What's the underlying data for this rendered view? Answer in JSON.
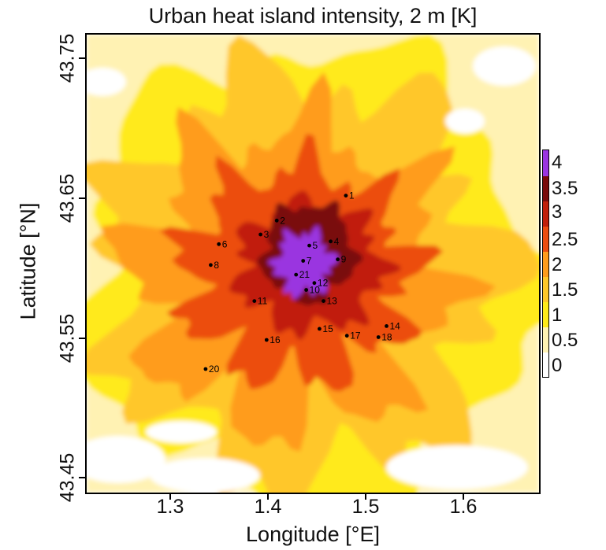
{
  "title": "Urban heat island intensity, 2 m [K]",
  "x_axis": {
    "label": "Longitude [°E]",
    "ticks": [
      "1.3",
      "1.4",
      "1.5",
      "1.6"
    ],
    "range": [
      1.225,
      1.67
    ]
  },
  "y_axis": {
    "label": "Latitude [°N]",
    "ticks": [
      "43.45",
      "43.55",
      "43.65",
      "43.75"
    ],
    "range": [
      43.44,
      43.77
    ]
  },
  "colorbar": {
    "ticks": [
      "0",
      "0.5",
      "1",
      "1.5",
      "2",
      "2.5",
      "3",
      "3.5",
      "4"
    ],
    "range": [
      -0.25,
      4.25
    ],
    "bins": [
      {
        "from": -0.25,
        "to": 0.25,
        "color": "#ffffff"
      },
      {
        "from": 0.25,
        "to": 0.75,
        "color": "#fff2b3"
      },
      {
        "from": 0.75,
        "to": 1.25,
        "color": "#ffea1a"
      },
      {
        "from": 1.25,
        "to": 1.75,
        "color": "#ffc72a"
      },
      {
        "from": 1.75,
        "to": 2.25,
        "color": "#ff9c1c"
      },
      {
        "from": 2.25,
        "to": 2.75,
        "color": "#ec4d10"
      },
      {
        "from": 2.75,
        "to": 3.25,
        "color": "#c11f0a"
      },
      {
        "from": 3.25,
        "to": 3.75,
        "color": "#7a0a0a"
      },
      {
        "from": 3.75,
        "to": 4.25,
        "color": "#9a35e0"
      }
    ]
  },
  "stations": [
    {
      "id": "1",
      "lon": 1.48,
      "lat": 43.654
    },
    {
      "id": "2",
      "lon": 1.412,
      "lat": 43.636
    },
    {
      "id": "3",
      "lon": 1.396,
      "lat": 43.626
    },
    {
      "id": "4",
      "lon": 1.465,
      "lat": 43.621
    },
    {
      "id": "5",
      "lon": 1.444,
      "lat": 43.618
    },
    {
      "id": "6",
      "lon": 1.355,
      "lat": 43.619
    },
    {
      "id": "7",
      "lon": 1.438,
      "lat": 43.607
    },
    {
      "id": "8",
      "lon": 1.347,
      "lat": 43.604
    },
    {
      "id": "9",
      "lon": 1.472,
      "lat": 43.608
    },
    {
      "id": "10",
      "lon": 1.441,
      "lat": 43.586
    },
    {
      "id": "11",
      "lon": 1.39,
      "lat": 43.578
    },
    {
      "id": "12",
      "lon": 1.449,
      "lat": 43.591
    },
    {
      "id": "13",
      "lon": 1.458,
      "lat": 43.578
    },
    {
      "id": "14",
      "lon": 1.52,
      "lat": 43.56
    },
    {
      "id": "15",
      "lon": 1.454,
      "lat": 43.558
    },
    {
      "id": "16",
      "lon": 1.402,
      "lat": 43.55
    },
    {
      "id": "17",
      "lon": 1.481,
      "lat": 43.553
    },
    {
      "id": "18",
      "lon": 1.512,
      "lat": 43.552
    },
    {
      "id": "20",
      "lon": 1.342,
      "lat": 43.529
    },
    {
      "id": "21",
      "lon": 1.431,
      "lat": 43.597
    }
  ]
}
